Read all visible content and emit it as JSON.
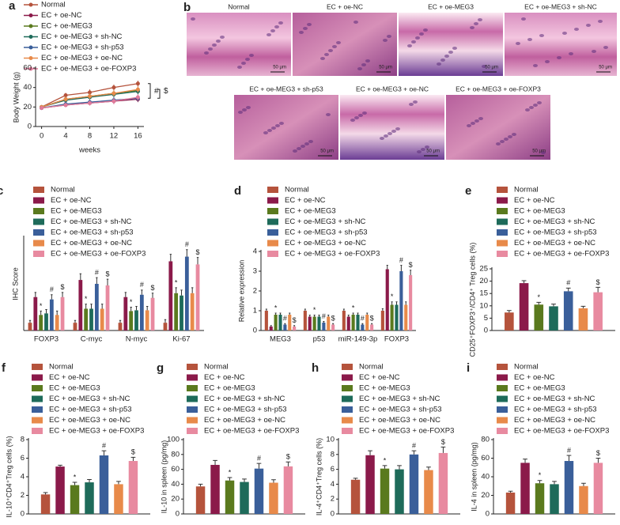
{
  "image_panel": {
    "label": "b",
    "images": [
      {
        "title": "Normal",
        "scale": "50 μm"
      },
      {
        "title": "EC + oe-NC",
        "scale": "50 μm"
      },
      {
        "title": "EC + oe-MEG3",
        "scale": "50 μm"
      },
      {
        "title": "EC + oe-MEG3 + sh-NC",
        "scale": "50 μm"
      },
      {
        "title": "EC + oe-MEG3 + sh-p53",
        "scale": "50 μm"
      },
      {
        "title": "EC + oe-MEG3 + oe-NC",
        "scale": "50 μm"
      },
      {
        "title": "EC + oe-MEG3 + oe-FOXP3",
        "scale": "50 μm"
      }
    ]
  },
  "chart_data": [
    {
      "type": "line",
      "label": "a",
      "xlabel": "weeks",
      "ylabel": "Body Weight (g)",
      "x": [
        0,
        4,
        8,
        12,
        16
      ],
      "xlim": [
        -1,
        17
      ],
      "xticks": [
        0,
        4,
        8,
        12,
        16
      ],
      "ylim": [
        0,
        60
      ],
      "yticks": [
        0,
        20,
        40,
        60
      ],
      "annotations": [
        "#",
        "$"
      ],
      "series": [
        {
          "name": "Normal",
          "color": "#b5533c",
          "values": [
            20,
            32,
            35,
            40,
            44
          ],
          "errors": [
            1.5,
            2.5,
            3,
            3,
            3
          ]
        },
        {
          "name": "EC + oe-NC",
          "color": "#8b1a4a",
          "values": [
            19,
            22,
            24,
            26,
            28
          ],
          "errors": [
            1.5,
            2,
            2.5,
            3,
            3
          ]
        },
        {
          "name": "EC + oe-MEG3",
          "color": "#5a7a1e",
          "values": [
            20,
            28,
            31,
            34,
            37
          ],
          "errors": [
            1.5,
            2.5,
            3,
            3,
            3
          ]
        },
        {
          "name": "EC + oe-MEG3 + sh-NC",
          "color": "#1e6b5a",
          "values": [
            20,
            27,
            30,
            33,
            36
          ],
          "errors": [
            1.5,
            2.5,
            3,
            3,
            3
          ]
        },
        {
          "name": "EC + oe-MEG3 + sh-p53",
          "color": "#3a5f9a",
          "values": [
            19,
            23,
            25,
            27,
            29
          ],
          "errors": [
            1.5,
            2,
            2.5,
            3,
            3
          ]
        },
        {
          "name": "EC + oe-MEG3 + oe-NC",
          "color": "#e88a4a",
          "values": [
            20,
            28,
            31,
            34,
            38
          ],
          "errors": [
            1.5,
            2.5,
            3,
            3,
            3
          ]
        },
        {
          "name": "EC + oe-MEG3 + oe-FOXP3",
          "color": "#e07a9a",
          "values": [
            19,
            22,
            24,
            26,
            30
          ],
          "errors": [
            1.5,
            2,
            2.5,
            3,
            3
          ]
        }
      ]
    },
    {
      "type": "bar",
      "label": "c",
      "ylabel": "IHC Score",
      "categories": [
        "FOXP3",
        "C-myc",
        "N-myc",
        "Ki-67"
      ],
      "ylim": [
        0,
        12
      ],
      "series": [
        {
          "name": "Normal",
          "color": "#b5533c",
          "values": [
            1,
            1,
            1,
            1
          ],
          "errors": [
            0.3,
            0.3,
            0.3,
            0.4
          ]
        },
        {
          "name": "EC + oe-NC",
          "color": "#8b1a4a",
          "values": [
            4.3,
            6.5,
            4.3,
            8.9
          ],
          "errors": [
            0.6,
            0.8,
            0.6,
            0.9
          ]
        },
        {
          "name": "EC + oe-MEG3",
          "color": "#5a7a1e",
          "values": [
            2,
            2.8,
            2.5,
            4.8
          ],
          "errors": [
            0.5,
            0.6,
            0.5,
            0.7
          ],
          "annotation": "*"
        },
        {
          "name": "EC + oe-MEG3 + sh-NC",
          "color": "#1e6b5a",
          "values": [
            2.2,
            2.8,
            2.6,
            4.5
          ],
          "errors": [
            0.5,
            0.6,
            0.5,
            0.7
          ]
        },
        {
          "name": "EC + oe-MEG3 + sh-p53",
          "color": "#3a5f9a",
          "values": [
            4,
            6,
            4.6,
            9.5
          ],
          "errors": [
            0.6,
            0.8,
            0.6,
            0.9
          ],
          "annotation": "#"
        },
        {
          "name": "EC + oe-MEG3 + oe-NC",
          "color": "#e88a4a",
          "values": [
            2,
            2.8,
            2.6,
            4.8
          ],
          "errors": [
            0.5,
            0.6,
            0.5,
            0.7
          ]
        },
        {
          "name": "EC + oe-MEG3 + oe-FOXP3",
          "color": "#e88aa0",
          "values": [
            4.3,
            5.8,
            4.2,
            8.5
          ],
          "errors": [
            0.6,
            0.8,
            0.6,
            0.9
          ],
          "annotation": "$"
        }
      ]
    },
    {
      "type": "bar",
      "label": "d",
      "ylabel": "Relative expression",
      "categories": [
        "MEG3",
        "p53",
        "miR-149-3p",
        "FOXP3"
      ],
      "ylim": [
        0,
        4
      ],
      "yticks": [
        0,
        1,
        2,
        3,
        4
      ],
      "series": [
        {
          "name": "Normal",
          "color": "#b5533c",
          "values": [
            1,
            1,
            1,
            1
          ],
          "errors": [
            0.08,
            0.08,
            0.08,
            0.1
          ]
        },
        {
          "name": "EC + oe-NC",
          "color": "#8b1a4a",
          "values": [
            0.2,
            0.7,
            0.7,
            3.1
          ],
          "errors": [
            0.05,
            0.08,
            0.08,
            0.2
          ]
        },
        {
          "name": "EC + oe-MEG3",
          "color": "#5a7a1e",
          "values": [
            0.8,
            0.7,
            0.8,
            1.3
          ],
          "errors": [
            0.08,
            0.08,
            0.08,
            0.15
          ],
          "annotation": "*"
        },
        {
          "name": "EC + oe-MEG3 + sh-NC",
          "color": "#1e6b5a",
          "values": [
            0.8,
            0.7,
            0.8,
            1.3
          ],
          "errors": [
            0.08,
            0.08,
            0.08,
            0.15
          ]
        },
        {
          "name": "EC + oe-MEG3 + sh-p53",
          "color": "#3a5f9a",
          "values": [
            0.3,
            0.4,
            0.3,
            3
          ],
          "errors": [
            0.05,
            0.06,
            0.05,
            0.3
          ],
          "annotation": "#"
        },
        {
          "name": "EC + oe-MEG3 + oe-NC",
          "color": "#e88a4a",
          "values": [
            0.8,
            0.7,
            0.8,
            1.3
          ],
          "errors": [
            0.08,
            0.08,
            0.08,
            0.15
          ]
        },
        {
          "name": "EC + oe-MEG3 + oe-FOXP3",
          "color": "#e88aa0",
          "values": [
            0.2,
            0.3,
            0.3,
            2.8
          ],
          "errors": [
            0.05,
            0.05,
            0.05,
            0.25
          ],
          "annotation": "$"
        }
      ]
    },
    {
      "type": "bar",
      "label": "e",
      "ylabel": "CD25⁺FOXP3⁺/CD4⁺ Treg cells (%)",
      "ylim": [
        0,
        25
      ],
      "yticks": [
        0,
        5,
        10,
        15,
        20,
        25
      ],
      "series": [
        {
          "name": "Normal",
          "color": "#b5533c",
          "values": [
            7.3
          ],
          "errors": [
            0.8
          ]
        },
        {
          "name": "EC + oe-NC",
          "color": "#8b1a4a",
          "values": [
            19.2
          ],
          "errors": [
            1
          ]
        },
        {
          "name": "EC + oe-MEG3",
          "color": "#5a7a1e",
          "values": [
            10.5
          ],
          "errors": [
            0.9
          ],
          "annotation": "*"
        },
        {
          "name": "EC + oe-MEG3 + sh-NC",
          "color": "#1e6b5a",
          "values": [
            9.8
          ],
          "errors": [
            0.9
          ]
        },
        {
          "name": "EC + oe-MEG3 + sh-p53",
          "color": "#3a5f9a",
          "values": [
            15.9
          ],
          "errors": [
            1.3
          ],
          "annotation": "#"
        },
        {
          "name": "EC + oe-MEG3 + oe-NC",
          "color": "#e88a4a",
          "values": [
            9
          ],
          "errors": [
            0.8
          ]
        },
        {
          "name": "EC + oe-MEG3 + oe-FOXP3",
          "color": "#e88aa0",
          "values": [
            15.5
          ],
          "errors": [
            2
          ],
          "annotation": "$"
        }
      ]
    },
    {
      "type": "bar",
      "label": "f",
      "ylabel": "IL-10⁺CD4⁺Treg cells (%)",
      "ylim": [
        0,
        8
      ],
      "yticks": [
        0,
        2,
        4,
        6,
        8
      ],
      "series": [
        {
          "name": "Normal",
          "color": "#b5533c",
          "values": [
            2.1
          ],
          "errors": [
            0.2
          ]
        },
        {
          "name": "EC + oe-NC",
          "color": "#8b1a4a",
          "values": [
            5.1
          ],
          "errors": [
            0.15
          ]
        },
        {
          "name": "EC + oe-MEG3",
          "color": "#5a7a1e",
          "values": [
            3.1
          ],
          "errors": [
            0.3
          ],
          "annotation": "*"
        },
        {
          "name": "EC + oe-MEG3 + sh-NC",
          "color": "#1e6b5a",
          "values": [
            3.4
          ],
          "errors": [
            0.3
          ]
        },
        {
          "name": "EC + oe-MEG3 + sh-p53",
          "color": "#3a5f9a",
          "values": [
            6.3
          ],
          "errors": [
            0.5
          ],
          "annotation": "#"
        },
        {
          "name": "EC + oe-MEG3 + oe-NC",
          "color": "#e88a4a",
          "values": [
            3.2
          ],
          "errors": [
            0.3
          ]
        },
        {
          "name": "EC + oe-MEG3 + oe-FOXP3",
          "color": "#e88aa0",
          "values": [
            5.7
          ],
          "errors": [
            0.4
          ],
          "annotation": "$"
        }
      ]
    },
    {
      "type": "bar",
      "label": "g",
      "ylabel": "IL-10 in spleen (pg/mg)",
      "ylim": [
        0,
        100
      ],
      "yticks": [
        0,
        20,
        40,
        60,
        80,
        100
      ],
      "series": [
        {
          "name": "Normal",
          "color": "#b5533c",
          "values": [
            37
          ],
          "errors": [
            3
          ]
        },
        {
          "name": "EC + oe-NC",
          "color": "#8b1a4a",
          "values": [
            66
          ],
          "errors": [
            6
          ]
        },
        {
          "name": "EC + oe-MEG3",
          "color": "#5a7a1e",
          "values": [
            45
          ],
          "errors": [
            4
          ],
          "annotation": "*"
        },
        {
          "name": "EC + oe-MEG3 + sh-NC",
          "color": "#1e6b5a",
          "values": [
            43
          ],
          "errors": [
            4
          ]
        },
        {
          "name": "EC + oe-MEG3 + sh-p53",
          "color": "#3a5f9a",
          "values": [
            61
          ],
          "errors": [
            7
          ],
          "annotation": "#"
        },
        {
          "name": "EC + oe-MEG3 + oe-NC",
          "color": "#e88a4a",
          "values": [
            42
          ],
          "errors": [
            4
          ]
        },
        {
          "name": "EC + oe-MEG3 + oe-FOXP3",
          "color": "#e88aa0",
          "values": [
            64
          ],
          "errors": [
            6
          ],
          "annotation": "$"
        }
      ]
    },
    {
      "type": "bar",
      "label": "h",
      "ylabel": "IL-4⁺CD4⁺Treg cells (%)",
      "ylim": [
        0,
        10
      ],
      "yticks": [
        0,
        2,
        4,
        6,
        8,
        10
      ],
      "series": [
        {
          "name": "Normal",
          "color": "#b5533c",
          "values": [
            4.6
          ],
          "errors": [
            0.2
          ]
        },
        {
          "name": "EC + oe-NC",
          "color": "#8b1a4a",
          "values": [
            7.9
          ],
          "errors": [
            0.6
          ]
        },
        {
          "name": "EC + oe-MEG3",
          "color": "#5a7a1e",
          "values": [
            6.1
          ],
          "errors": [
            0.4
          ],
          "annotation": "*"
        },
        {
          "name": "EC + oe-MEG3 + sh-NC",
          "color": "#1e6b5a",
          "values": [
            6
          ],
          "errors": [
            0.5
          ]
        },
        {
          "name": "EC + oe-MEG3 + sh-p53",
          "color": "#3a5f9a",
          "values": [
            8
          ],
          "errors": [
            0.5
          ],
          "annotation": "#"
        },
        {
          "name": "EC + oe-MEG3 + oe-NC",
          "color": "#e88a4a",
          "values": [
            5.9
          ],
          "errors": [
            0.4
          ]
        },
        {
          "name": "EC + oe-MEG3 + oe-FOXP3",
          "color": "#e88aa0",
          "values": [
            8.2
          ],
          "errors": [
            0.8
          ],
          "annotation": "$"
        }
      ]
    },
    {
      "type": "bar",
      "label": "i",
      "ylabel": "IL-4 in spleen (pg/mg)",
      "ylim": [
        0,
        80
      ],
      "yticks": [
        0,
        20,
        40,
        60,
        80
      ],
      "series": [
        {
          "name": "Normal",
          "color": "#b5533c",
          "values": [
            23
          ],
          "errors": [
            1.5
          ]
        },
        {
          "name": "EC + oe-NC",
          "color": "#8b1a4a",
          "values": [
            55
          ],
          "errors": [
            4
          ]
        },
        {
          "name": "EC + oe-MEG3",
          "color": "#5a7a1e",
          "values": [
            33
          ],
          "errors": [
            3
          ],
          "annotation": "*"
        },
        {
          "name": "EC + oe-MEG3 + sh-NC",
          "color": "#1e6b5a",
          "values": [
            32
          ],
          "errors": [
            3
          ]
        },
        {
          "name": "EC + oe-MEG3 + sh-p53",
          "color": "#3a5f9a",
          "values": [
            57
          ],
          "errors": [
            6
          ],
          "annotation": "#"
        },
        {
          "name": "EC + oe-MEG3 + oe-NC",
          "color": "#e88a4a",
          "values": [
            30
          ],
          "errors": [
            3
          ]
        },
        {
          "name": "EC + oe-MEG3 + oe-FOXP3",
          "color": "#e88aa0",
          "values": [
            55
          ],
          "errors": [
            5
          ],
          "annotation": "$"
        }
      ]
    }
  ]
}
